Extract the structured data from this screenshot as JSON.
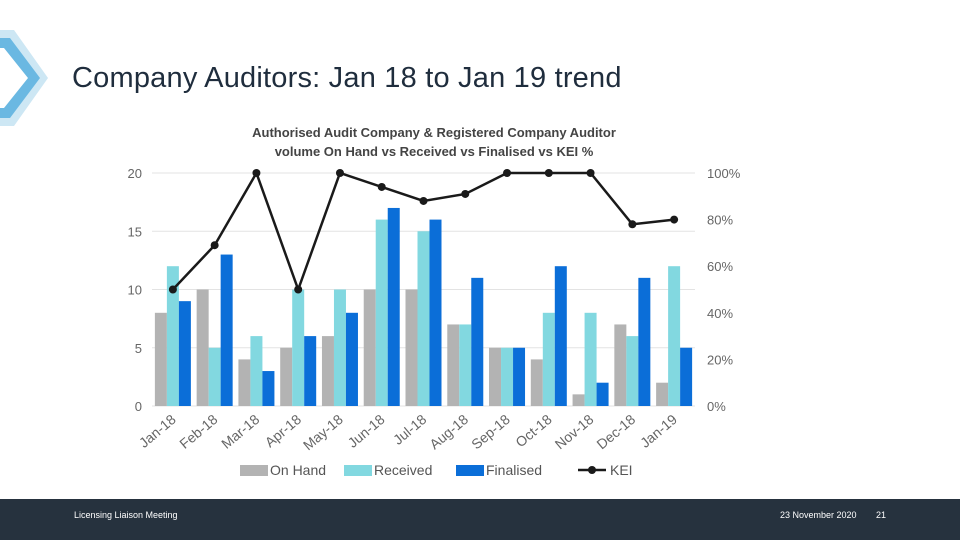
{
  "slide": {
    "title": "Company Auditors: Jan 18 to Jan 19 trend"
  },
  "footer": {
    "meeting": "Licensing Liaison Meeting",
    "date": "23 November 2020",
    "page": "21"
  },
  "chart_data": {
    "type": "bar",
    "title_line1": "Authorised Audit Company & Registered Company Auditor",
    "title_line2": "volume On Hand vs Received vs Finalised vs KEI %",
    "categories": [
      "Jan-18",
      "Feb-18",
      "Mar-18",
      "Apr-18",
      "May-18",
      "Jun-18",
      "Jul-18",
      "Aug-18",
      "Sep-18",
      "Oct-18",
      "Nov-18",
      "Dec-18",
      "Jan-19"
    ],
    "series": [
      {
        "name": "On Hand",
        "color": "#b3b3b3",
        "values": [
          8,
          10,
          4,
          5,
          6,
          10,
          10,
          7,
          5,
          4,
          1,
          7,
          2
        ]
      },
      {
        "name": "Received",
        "color": "#82d8e0",
        "values": [
          12,
          5,
          6,
          10,
          10,
          16,
          15,
          7,
          5,
          8,
          8,
          6,
          12
        ]
      },
      {
        "name": "Finalised",
        "color": "#0b6ed8",
        "values": [
          9,
          13,
          3,
          6,
          8,
          17,
          16,
          11,
          5,
          12,
          2,
          11,
          5
        ]
      }
    ],
    "line_series": {
      "name": "KEI",
      "color": "#1a1a1a",
      "axis": "right",
      "values": [
        50,
        69,
        100,
        50,
        100,
        94,
        88,
        91,
        100,
        100,
        100,
        78,
        80
      ]
    },
    "y_left": {
      "min": 0,
      "max": 20,
      "ticks": [
        "0",
        "5",
        "10",
        "15",
        "20"
      ]
    },
    "y_right": {
      "min": 0,
      "max": 100,
      "ticks": [
        "0%",
        "20%",
        "40%",
        "60%",
        "80%",
        "100%"
      ]
    },
    "grid": true,
    "legend": "bottom"
  }
}
